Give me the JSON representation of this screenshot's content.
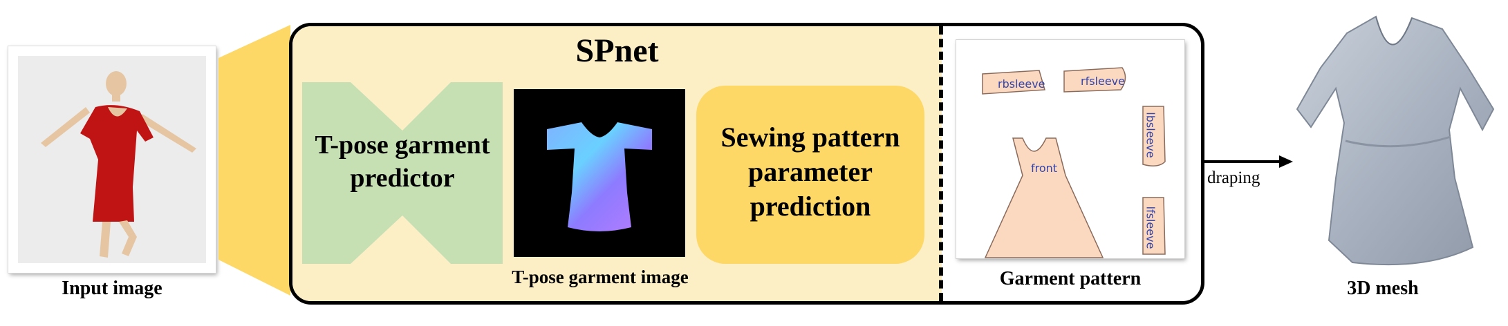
{
  "input": {
    "caption": "Input image"
  },
  "spnet": {
    "title": "SPnet",
    "predictor": {
      "line1": "T-pose garment",
      "line2": "predictor"
    },
    "tpose_image_caption": "T-pose garment image",
    "sewing": {
      "line1": "Sewing pattern",
      "line2": "parameter",
      "line3": "prediction"
    },
    "pattern_caption": "Garment pattern",
    "pieces": [
      "rbsleeve",
      "rfsleeve",
      "lbsleeve",
      "lfsleeve",
      "front"
    ]
  },
  "arrow_label": "draping",
  "output": {
    "caption": "3D mesh"
  },
  "colors": {
    "spnet_background": "#fdefc5",
    "funnel": "#fdd866",
    "predictor_shape": "#c6e0b4",
    "sewing_box": "#fdd866",
    "pattern_piece": "#fbd9c0",
    "mesh": "#aeb7c5",
    "dress": "#c01414"
  }
}
